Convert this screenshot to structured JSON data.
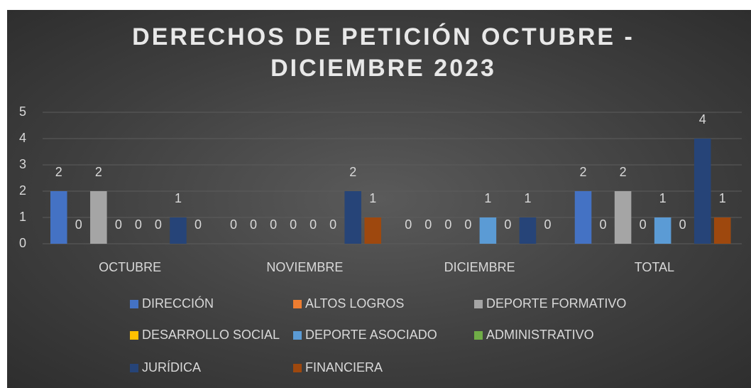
{
  "chart_data": {
    "type": "bar",
    "title": "DERECHOS DE PETICIÓN  OCTUBRE - DICIEMBRE 2023",
    "categories": [
      "OCTUBRE",
      "NOVIEMBRE",
      "DICIEMBRE",
      "TOTAL"
    ],
    "series": [
      {
        "name": "DIRECCIÓN",
        "color": "#4472c4",
        "values": [
          2,
          0,
          0,
          2
        ]
      },
      {
        "name": "ALTOS LOGROS",
        "color": "#ed7d31",
        "values": [
          0,
          0,
          0,
          0
        ]
      },
      {
        "name": "DEPORTE FORMATIVO",
        "color": "#a5a5a5",
        "values": [
          2,
          0,
          0,
          2
        ]
      },
      {
        "name": "DESARROLLO SOCIAL",
        "color": "#ffc000",
        "values": [
          0,
          0,
          0,
          0
        ]
      },
      {
        "name": "DEPORTE ASOCIADO",
        "color": "#5b9bd5",
        "values": [
          0,
          0,
          1,
          1
        ]
      },
      {
        "name": "ADMINISTRATIVO",
        "color": "#70ad47",
        "values": [
          0,
          0,
          0,
          0
        ]
      },
      {
        "name": "JURÍDICA",
        "color": "#264478",
        "values": [
          1,
          2,
          1,
          4
        ]
      },
      {
        "name": "FINANCIERA",
        "color": "#9e480e",
        "values": [
          0,
          1,
          0,
          1
        ]
      }
    ],
    "ylim": [
      0,
      5
    ],
    "yticks": [
      0,
      1,
      2,
      3,
      4,
      5
    ],
    "grid": true,
    "legend": "bottom"
  }
}
